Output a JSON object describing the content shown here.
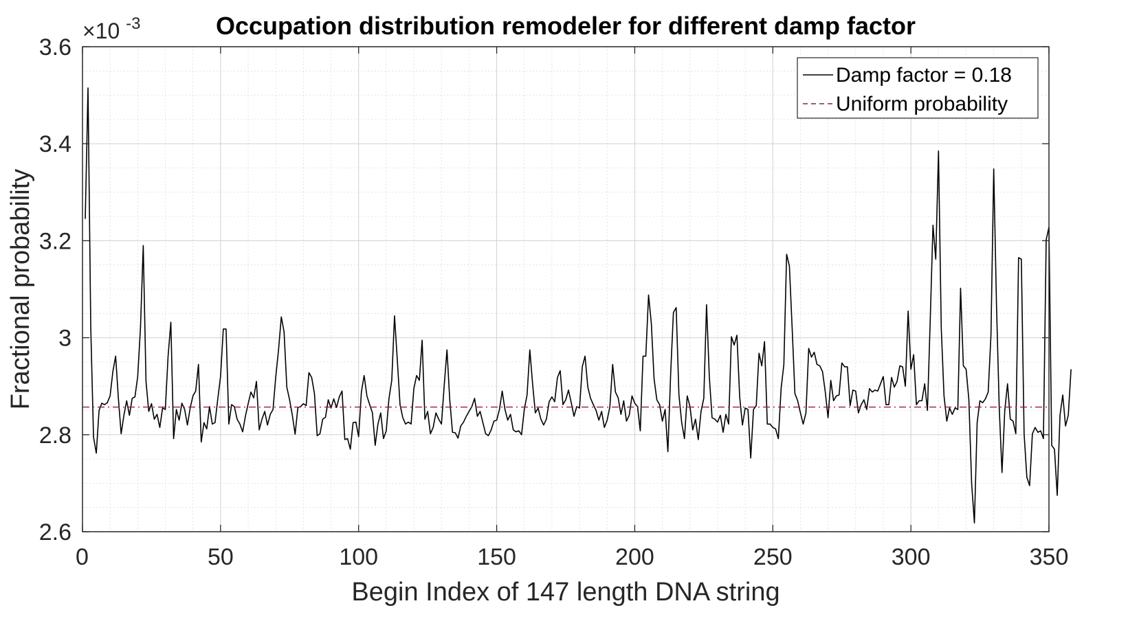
{
  "chart_data": {
    "type": "line",
    "title": "Occupation distribution remodeler for different damp factor",
    "xlabel": "Begin Index of 147 length DNA string",
    "ylabel": "Fractional probability",
    "y_multiplier_base": "×10",
    "y_multiplier_exponent": "-3",
    "xlim": [
      0,
      350
    ],
    "ylim": [
      2.6,
      3.6
    ],
    "x_ticks": [
      0,
      50,
      100,
      150,
      200,
      250,
      300,
      350
    ],
    "x_tick_labels": [
      "0",
      "50",
      "100",
      "150",
      "200",
      "250",
      "300",
      "350"
    ],
    "y_ticks": [
      2.6,
      2.8,
      3.0,
      3.2,
      3.4,
      3.6
    ],
    "y_tick_labels": [
      "2.6",
      "2.8",
      "3",
      "3.2",
      "3.4",
      "3.6"
    ],
    "grid": true,
    "minor_grid": true,
    "legend_position": "top-right",
    "series": [
      {
        "name": "Damp factor = 0.18",
        "color": "#000000",
        "style": "solid",
        "x_start": 1,
        "x_step": 1,
        "values": [
          3.245,
          3.515,
          3.02,
          2.795,
          2.762,
          2.85,
          2.865,
          2.862,
          2.866,
          2.88,
          2.93,
          2.962,
          2.875,
          2.802,
          2.84,
          2.87,
          2.84,
          2.875,
          2.878,
          2.92,
          3.02,
          3.19,
          2.91,
          2.848,
          2.864,
          2.832,
          2.842,
          2.815,
          2.855,
          2.852,
          2.962,
          3.032,
          2.792,
          2.852,
          2.83,
          2.865,
          2.852,
          2.82,
          2.855,
          2.88,
          2.89,
          2.945,
          2.785,
          2.825,
          2.812,
          2.858,
          2.822,
          2.825,
          2.874,
          2.92,
          3.018,
          3.018,
          2.822,
          2.862,
          2.858,
          2.832,
          2.822,
          2.806,
          2.838,
          2.864,
          2.888,
          2.876,
          2.91,
          2.81,
          2.832,
          2.848,
          2.82,
          2.842,
          2.852,
          2.92,
          2.975,
          3.043,
          3.012,
          2.898,
          2.872,
          2.84,
          2.801,
          2.856,
          2.858,
          2.864,
          2.86,
          2.928,
          2.918,
          2.885,
          2.798,
          2.802,
          2.832,
          2.836,
          2.872,
          2.855,
          2.874,
          2.856,
          2.878,
          2.89,
          2.79,
          2.792,
          2.77,
          2.825,
          2.826,
          2.796,
          2.888,
          2.922,
          2.88,
          2.862,
          2.845,
          2.778,
          2.822,
          2.845,
          2.792,
          2.808,
          2.875,
          2.912,
          3.045,
          2.955,
          2.862,
          2.835,
          2.822,
          2.826,
          2.822,
          2.895,
          2.922,
          2.912,
          2.995,
          2.832,
          2.848,
          2.802,
          2.815,
          2.845,
          2.832,
          2.822,
          2.902,
          2.975,
          2.872,
          2.805,
          2.804,
          2.793,
          2.818,
          2.826,
          2.838,
          2.848,
          2.858,
          2.875,
          2.838,
          2.848,
          2.825,
          2.802,
          2.798,
          2.81,
          2.828,
          2.83,
          2.852,
          2.89,
          2.852,
          2.83,
          2.842,
          2.81,
          2.806,
          2.808,
          2.8,
          2.852,
          2.882,
          2.975,
          2.905,
          2.845,
          2.855,
          2.832,
          2.82,
          2.832,
          2.868,
          2.878,
          2.868,
          2.918,
          2.932,
          2.862,
          2.872,
          2.892,
          2.866,
          2.838,
          2.858,
          2.855,
          2.94,
          2.962,
          2.898,
          2.875,
          2.862,
          2.85,
          2.83,
          2.848,
          2.815,
          2.83,
          2.858,
          2.945,
          2.888,
          2.876,
          2.842,
          2.87,
          2.828,
          2.84,
          2.88,
          2.865,
          2.858,
          2.808,
          2.962,
          2.962,
          3.088,
          3.03,
          2.915,
          2.872,
          2.862,
          2.828,
          2.852,
          2.765,
          2.925,
          3.052,
          3.062,
          2.882,
          2.825,
          2.792,
          2.88,
          2.858,
          2.81,
          2.832,
          2.79,
          2.848,
          2.875,
          3.068,
          2.92,
          2.835,
          2.832,
          2.826,
          2.84,
          2.805,
          2.842,
          2.822,
          3.002,
          2.985,
          3.005,
          2.878,
          2.82,
          2.855,
          2.852,
          2.752,
          2.852,
          2.86,
          2.968,
          2.942,
          2.992,
          2.822,
          2.822,
          2.815,
          2.812,
          2.792,
          2.895,
          2.945,
          3.172,
          3.148,
          3.02,
          2.885,
          2.87,
          2.845,
          2.822,
          2.845,
          2.978,
          2.96,
          2.97,
          2.945,
          2.942,
          2.93,
          2.888,
          2.835,
          2.912,
          2.87,
          2.88,
          2.882,
          2.948,
          2.94,
          2.94,
          2.86,
          2.892,
          2.89,
          2.845,
          2.862,
          2.872,
          2.852,
          2.895,
          2.888,
          2.892,
          2.89,
          2.905,
          2.92,
          2.862,
          2.862,
          2.918,
          2.898,
          2.91,
          2.942,
          2.94,
          2.9,
          3.055,
          2.935,
          2.965,
          2.862,
          2.87,
          2.87,
          2.905,
          2.85,
          3.035,
          3.232,
          3.162,
          3.385,
          3.02,
          2.88,
          2.828,
          2.855,
          2.842,
          2.855,
          2.852,
          3.102,
          2.942,
          2.935,
          2.872,
          2.7,
          2.618,
          2.825,
          2.87,
          2.866,
          2.874,
          2.888,
          3.005,
          3.348,
          3.068,
          2.855,
          2.722,
          2.85,
          2.905,
          2.832,
          2.828,
          2.802,
          3.165,
          3.162,
          2.802,
          2.712,
          2.695,
          2.802,
          2.815,
          2.805,
          2.808,
          2.792,
          3.202,
          3.228,
          2.778,
          2.77,
          2.675,
          2.84,
          2.882,
          2.818,
          2.84,
          2.935
        ]
      },
      {
        "name": "Uniform probability",
        "color": "#a2142f",
        "style": "dashed",
        "constant": 2.857
      }
    ]
  }
}
